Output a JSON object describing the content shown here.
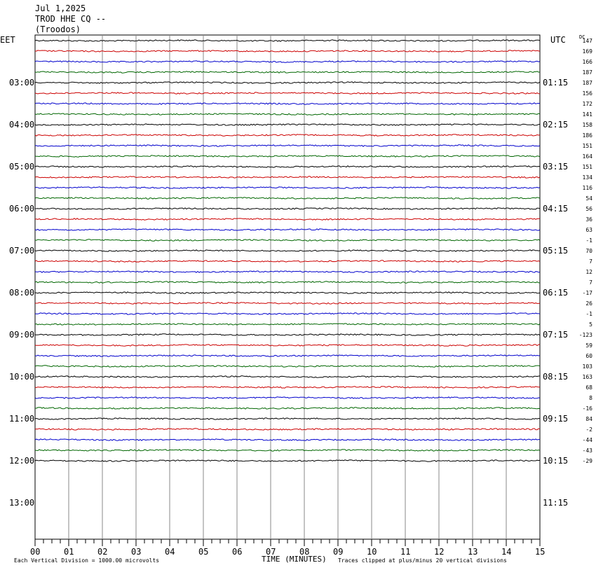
{
  "header": {
    "date": "Jul 1,2025",
    "station": "TROD HHE CQ --",
    "location": "(Troodos)"
  },
  "left_tz": "EET",
  "right_tz": "UTC",
  "dc_header": "DC",
  "chart_data": {
    "type": "line",
    "title": "",
    "xlabel": "TIME (MINUTES)",
    "ylabel": "",
    "x_ticks": [
      "00",
      "01",
      "02",
      "03",
      "04",
      "05",
      "06",
      "07",
      "08",
      "09",
      "10",
      "11",
      "12",
      "13",
      "14",
      "15"
    ],
    "xlim": [
      0,
      15
    ],
    "left_hour_labels": [
      "03:00",
      "04:00",
      "05:00",
      "06:00",
      "07:00",
      "08:00",
      "09:00",
      "10:00",
      "11:00",
      "12:00",
      "13:00"
    ],
    "right_hour_labels": [
      "01:15",
      "02:15",
      "03:15",
      "04:15",
      "05:15",
      "06:15",
      "07:15",
      "08:15",
      "09:15",
      "10:15",
      "11:15"
    ],
    "trace_colors": [
      "#000000",
      "#cc0000",
      "#0000cc",
      "#006600"
    ],
    "trace_count": 41,
    "dc_offsets": [
      "147",
      "169",
      "166",
      "187",
      "187",
      "156",
      "172",
      "141",
      "158",
      "186",
      "151",
      "164",
      "151",
      "134",
      "116",
      "54",
      "56",
      "36",
      "63",
      "-1",
      "70",
      "7",
      "12",
      "7",
      "-17",
      "26",
      "-1",
      "5",
      "-123",
      "59",
      "60",
      "103",
      "163",
      "68",
      "8",
      "-16",
      "84",
      "-2",
      "-44",
      "-43",
      "-29"
    ],
    "grid": true,
    "footer_left": "Each Vertical Division = 1000.00 microvolts",
    "footer_right": "Traces clipped at plus/minus 20 vertical divisions"
  }
}
